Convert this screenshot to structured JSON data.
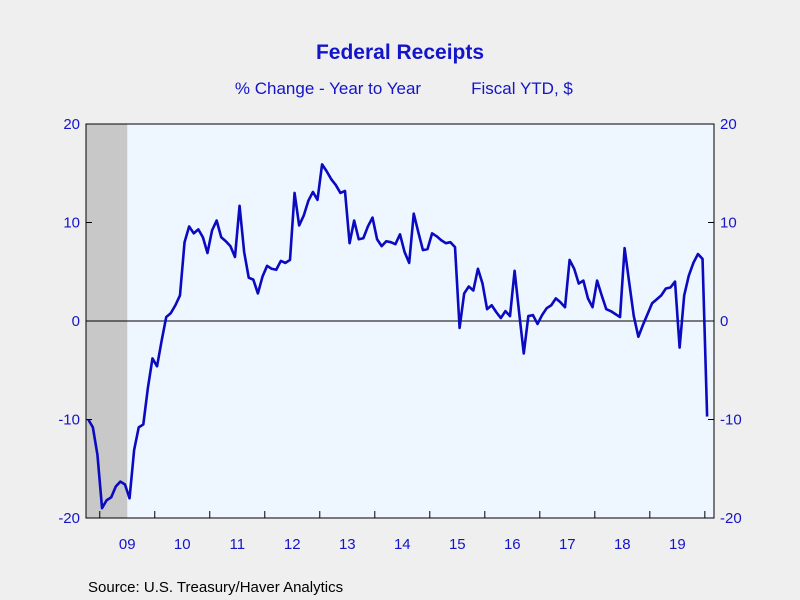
{
  "chart_data": {
    "type": "line",
    "title": "Federal Receipts",
    "subtitle_left": "% Change - Year to Year",
    "subtitle_right": "Fiscal YTD, $",
    "source": "Source:  U.S. Treasury/Haver Analytics",
    "ylim": [
      -20,
      20
    ],
    "y_ticks": [
      -20,
      -10,
      0,
      10,
      20
    ],
    "y_tick_labels": [
      "-20",
      "-10",
      "0",
      "10",
      "20"
    ],
    "x_tick_labels": [
      "09",
      "10",
      "11",
      "12",
      "13",
      "14",
      "15",
      "16",
      "17",
      "18",
      "19"
    ],
    "grid": false,
    "zero_line": true,
    "recession_shading": {
      "start": "2008-10",
      "end": "2009-06"
    },
    "colors": {
      "line": "#0a0ac0",
      "text": "#1414c8",
      "plot_bg": "#eef6ff",
      "page_bg": "#efefef",
      "recession": "#c8c8c8"
    },
    "series": [
      {
        "start": "2008-10",
        "frequency": "monthly",
        "values": [
          -10.0,
          -10.8,
          -13.6,
          -19.0,
          -18.2,
          -17.9,
          -16.8,
          -16.3,
          -16.6,
          -18.0,
          -13.1,
          -10.8,
          -10.5,
          -6.8,
          -3.8,
          -4.6,
          -2.0,
          0.4,
          0.8,
          1.6,
          2.6,
          8.0,
          9.6,
          8.9,
          9.3,
          8.5,
          6.9,
          9.2,
          10.2,
          8.5,
          8.1,
          7.6,
          6.5,
          11.7,
          7.0,
          4.4,
          4.2,
          2.8,
          4.5,
          5.6,
          5.3,
          5.2,
          6.1,
          5.9,
          6.2,
          13.0,
          9.7,
          10.7,
          12.2,
          13.1,
          12.3,
          15.9,
          15.2,
          14.4,
          13.8,
          13.0,
          13.2,
          7.9,
          10.2,
          8.3,
          8.4,
          9.6,
          10.5,
          8.3,
          7.6,
          8.1,
          8.0,
          7.8,
          8.8,
          7.0,
          5.9,
          10.9,
          9.0,
          7.2,
          7.3,
          8.9,
          8.6,
          8.2,
          7.9,
          8.0,
          7.5,
          -0.7,
          2.8,
          3.5,
          3.1,
          5.3,
          3.8,
          1.2,
          1.6,
          0.9,
          0.3,
          1.0,
          0.5,
          5.1,
          0.8,
          -3.3,
          0.5,
          0.6,
          -0.3,
          0.6,
          1.3,
          1.6,
          2.3,
          1.9,
          1.4,
          6.2,
          5.3,
          3.8,
          4.1,
          2.3,
          1.4,
          4.1,
          2.6,
          1.2,
          1.0,
          0.7,
          0.4,
          7.4,
          3.9,
          0.5,
          -1.6,
          -0.4,
          0.7,
          1.8,
          2.2,
          2.6,
          3.3,
          3.4,
          4.0,
          -2.7,
          2.6,
          4.6,
          5.9,
          6.8,
          6.3,
          -9.7
        ]
      }
    ]
  }
}
